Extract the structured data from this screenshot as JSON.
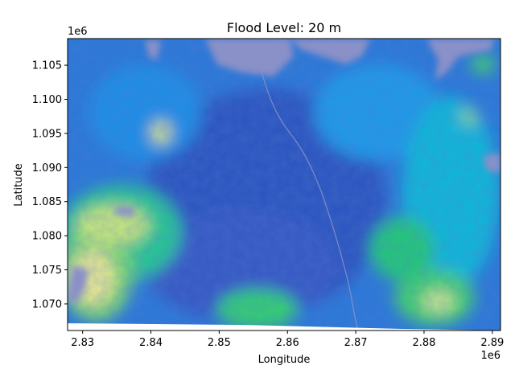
{
  "chart_data": {
    "type": "heatmap",
    "title": "Flood Level: 20 m",
    "xlabel": "Longitude",
    "ylabel": "Latitude",
    "x_offset_label": "1e6",
    "y_offset_label": "1e6",
    "xlim": [
      2.8278,
      2.8912
    ],
    "ylim": [
      1.0661,
      1.1089
    ],
    "x_ticks": [
      {
        "value": 2.83,
        "label": "2.83"
      },
      {
        "value": 2.84,
        "label": "2.84"
      },
      {
        "value": 2.85,
        "label": "2.85"
      },
      {
        "value": 2.86,
        "label": "2.86"
      },
      {
        "value": 2.87,
        "label": "2.87"
      },
      {
        "value": 2.88,
        "label": "2.88"
      },
      {
        "value": 2.89,
        "label": "2.89"
      }
    ],
    "y_ticks": [
      {
        "value": 1.07,
        "label": "1.070"
      },
      {
        "value": 1.075,
        "label": "1.075"
      },
      {
        "value": 1.08,
        "label": "1.080"
      },
      {
        "value": 1.085,
        "label": "1.085"
      },
      {
        "value": 1.09,
        "label": "1.090"
      },
      {
        "value": 1.095,
        "label": "1.095"
      },
      {
        "value": 1.1,
        "label": "1.100"
      },
      {
        "value": 1.105,
        "label": "1.105"
      }
    ],
    "colormap": "terrain",
    "flooded_color": "#8a90c8",
    "grid": false,
    "legend": "none"
  }
}
